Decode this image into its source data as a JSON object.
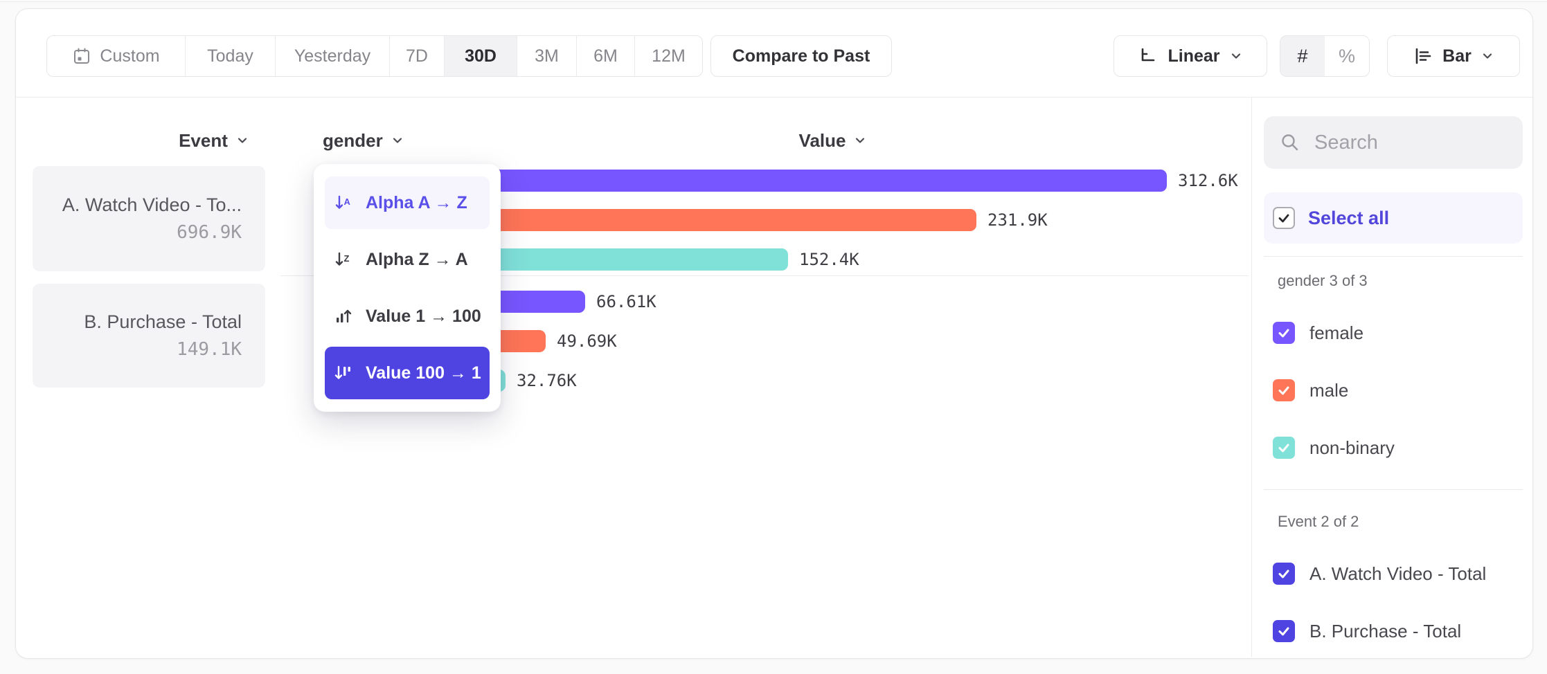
{
  "toolbar": {
    "date_ranges": [
      {
        "label": "Custom",
        "icon": "calendar-icon",
        "selected": false
      },
      {
        "label": "Today",
        "selected": false
      },
      {
        "label": "Yesterday",
        "selected": false
      },
      {
        "label": "7D",
        "selected": false
      },
      {
        "label": "30D",
        "selected": true
      },
      {
        "label": "3M",
        "selected": false
      },
      {
        "label": "6M",
        "selected": false
      },
      {
        "label": "12M",
        "selected": false
      }
    ],
    "compare_button": "Compare to Past",
    "scale_button": {
      "label": "Linear"
    },
    "value_format_toggle": [
      {
        "label": "#",
        "selected": true
      },
      {
        "label": "%",
        "selected": false
      }
    ],
    "chart_type_button": {
      "label": "Bar"
    }
  },
  "chart": {
    "headers": {
      "event": "Event",
      "breakdown": "gender",
      "value": "Value"
    },
    "event_totals": [
      {
        "label": "A. Watch Video - To...",
        "value": "696.9K"
      },
      {
        "label": "B. Purchase - Total",
        "value": "149.1K"
      }
    ]
  },
  "chart_data": {
    "type": "bar",
    "orientation": "horizontal",
    "value_axis_label": "Value",
    "breakdown_property": "gender",
    "categories": [
      "female",
      "male",
      "non-binary"
    ],
    "category_colors": {
      "female": "#7856FF",
      "male": "#FF7557",
      "non-binary": "#80E1D9"
    },
    "series": [
      {
        "name": "A. Watch Video - Total",
        "total": 696900,
        "total_label": "696.9K",
        "values": [
          312600,
          231900,
          152400
        ],
        "value_labels": [
          "312.6K",
          "231.9K",
          "152.4K"
        ]
      },
      {
        "name": "B. Purchase - Total",
        "total": 149100,
        "total_label": "149.1K",
        "values": [
          66610,
          49690,
          32760
        ],
        "value_labels": [
          "66.61K",
          "49.69K",
          "32.76K"
        ]
      }
    ],
    "xlim": [
      0,
      312600
    ],
    "sort": "Value 100 → 1",
    "legend_position": "right",
    "grid": false
  },
  "sort_menu": {
    "items": [
      {
        "label": "Alpha A → Z",
        "icon": "sort-alpha-asc-icon",
        "state": "hover"
      },
      {
        "label": "Alpha Z → A",
        "icon": "sort-alpha-desc-icon",
        "state": "default"
      },
      {
        "label": "Value 1 → 100",
        "icon": "sort-value-asc-icon",
        "state": "default"
      },
      {
        "label": "Value 100 → 1",
        "icon": "sort-value-desc-icon",
        "state": "selected"
      }
    ]
  },
  "sidebar": {
    "search_placeholder": "Search",
    "select_all_label": "Select all",
    "sections": [
      {
        "title": "gender 3 of 3",
        "items": [
          {
            "label": "female",
            "checked": true,
            "color": "#7856FF"
          },
          {
            "label": "male",
            "checked": true,
            "color": "#FF7557"
          },
          {
            "label": "non-binary",
            "checked": true,
            "color": "#80E1D9"
          }
        ]
      },
      {
        "title": "Event 2 of 2",
        "items": [
          {
            "label": "A. Watch Video - Total",
            "checked": true,
            "color": "#4F43E1"
          },
          {
            "label": "B. Purchase - Total",
            "checked": true,
            "color": "#4F43E1"
          }
        ]
      }
    ]
  },
  "colors": {
    "accent_indigo": "#4F43E1",
    "series_purple": "#7856FF",
    "series_orange": "#FF7557",
    "series_teal": "#80E1D9",
    "menu_hover_text": "#5A4FE8",
    "select_all_text": "#5246DB",
    "selected_cell_bg": "#F2F2F4"
  }
}
